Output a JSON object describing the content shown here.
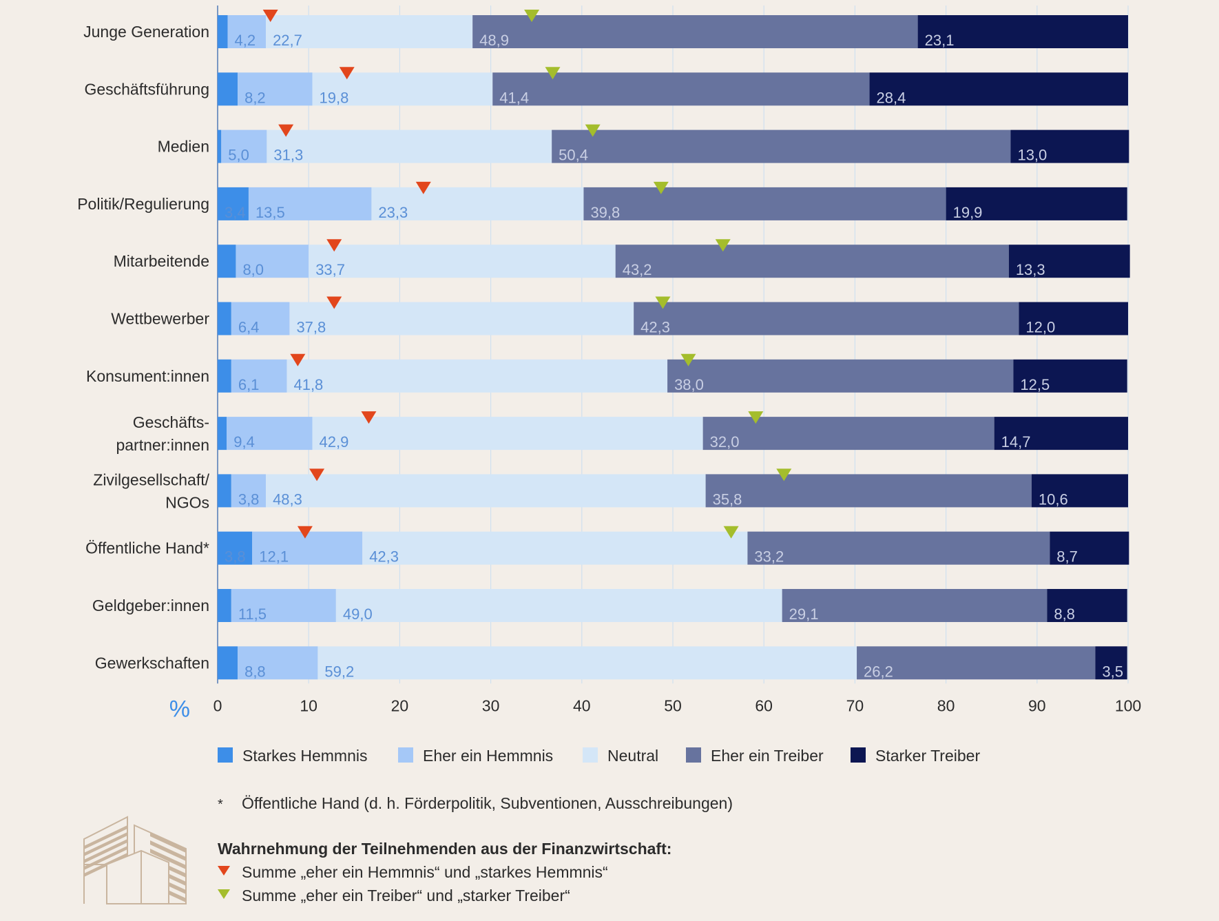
{
  "chart_data": {
    "type": "bar",
    "orientation": "horizontal",
    "stacked": true,
    "categories": [
      "Junge Generation",
      "Geschäftsführung",
      "Medien",
      "Politik/Regulierung",
      "Mitarbeitende",
      "Wettbewerber",
      "Konsument:innen",
      "Geschäfts-\npartner:innen",
      "Zivilgesellschaft/\nNGOs",
      "Öffentliche Hand*",
      "Geldgeber:innen",
      "Gewerkschaften"
    ],
    "series": [
      {
        "name": "Starkes Hemmnis",
        "color": "#3d8ee8",
        "values": [
          1.1,
          2.2,
          0.4,
          3.4,
          2.0,
          1.5,
          1.5,
          1.0,
          1.5,
          3.8,
          1.5,
          2.2
        ],
        "labels": [
          "",
          "",
          "",
          "3,4",
          "",
          "",
          "",
          "",
          "",
          "3,8",
          "",
          ""
        ]
      },
      {
        "name": "Eher ein Hemmnis",
        "color": "#a5c8f7",
        "values": [
          4.2,
          8.2,
          5.0,
          13.5,
          8.0,
          6.4,
          6.1,
          9.4,
          3.8,
          12.1,
          11.5,
          8.8
        ],
        "labels": [
          "4,2",
          "8,2",
          "5,0",
          "13,5",
          "8,0",
          "6,4",
          "6,1",
          "9,4",
          "3,8",
          "12,1",
          "11,5",
          "8,8"
        ]
      },
      {
        "name": "Neutral",
        "color": "#d4e6f7",
        "values": [
          22.7,
          19.8,
          31.3,
          23.3,
          33.7,
          37.8,
          41.8,
          42.9,
          48.3,
          42.3,
          49.0,
          59.2
        ],
        "labels": [
          "22,7",
          "19,8",
          "31,3",
          "23,3",
          "33,7",
          "37,8",
          "41,8",
          "42,9",
          "48,3",
          "42,3",
          "49,0",
          "59,2"
        ]
      },
      {
        "name": "Eher ein Treiber",
        "color": "#67739e",
        "values": [
          48.9,
          41.4,
          50.4,
          39.8,
          43.2,
          42.3,
          38.0,
          32.0,
          35.8,
          33.2,
          29.1,
          26.2
        ],
        "labels": [
          "48,9",
          "41,4",
          "50,4",
          "39,8",
          "43,2",
          "42,3",
          "38,0",
          "32,0",
          "35,8",
          "33,2",
          "29,1",
          "26,2"
        ]
      },
      {
        "name": "Starker Treiber",
        "color": "#0c1652",
        "values": [
          23.1,
          28.4,
          13.0,
          19.9,
          13.3,
          12.0,
          12.5,
          14.7,
          10.6,
          8.7,
          8.8,
          3.5
        ],
        "labels": [
          "23,1",
          "28,4",
          "13,0",
          "19,9",
          "13,3",
          "12,0",
          "12,5",
          "14,7",
          "10,6",
          "8,7",
          "8,8",
          "3,5"
        ]
      }
    ],
    "markers": {
      "hemmnis_sum": {
        "color": "#e2461c",
        "values": [
          5.8,
          14.2,
          7.5,
          22.6,
          12.8,
          12.8,
          8.8,
          16.6,
          10.9,
          9.6,
          null,
          null
        ]
      },
      "treiber_sum": {
        "color": "#a4bd2c",
        "values": [
          34.5,
          36.8,
          41.2,
          48.7,
          55.5,
          48.9,
          51.7,
          59.1,
          62.2,
          56.4,
          null,
          null
        ]
      }
    },
    "xlim": [
      0,
      100
    ],
    "xticks": [
      0,
      10,
      20,
      30,
      40,
      50,
      60,
      70,
      80,
      90,
      100
    ],
    "xunit": "%",
    "grid": true,
    "legend_position": "bottom"
  },
  "legend": [
    {
      "label": "Starkes Hemmnis",
      "color": "#3d8ee8"
    },
    {
      "label": "Eher ein Hemmnis",
      "color": "#a5c8f7"
    },
    {
      "label": "Neutral",
      "color": "#d4e6f7"
    },
    {
      "label": "Eher ein Treiber",
      "color": "#67739e"
    },
    {
      "label": "Starker Treiber",
      "color": "#0c1652"
    }
  ],
  "footnote": {
    "mark": "*",
    "text": "Öffentliche Hand (d. h. Förderpolitik, Subventionen, Ausschreibungen)"
  },
  "perception": {
    "title": "Wahrnehmung der Teilnehmenden aus der Finanzwirtschaft:",
    "items": [
      {
        "text": "Summe „eher ein Hemmnis“ und „starkes Hemmnis“",
        "color": "#e2461c"
      },
      {
        "text": "Summe „eher ein Treiber“ und „starker Treiber“",
        "color": "#a4bd2c"
      }
    ]
  },
  "icon": {
    "name": "finance-buildings-icon",
    "color": "#c9b59f"
  }
}
